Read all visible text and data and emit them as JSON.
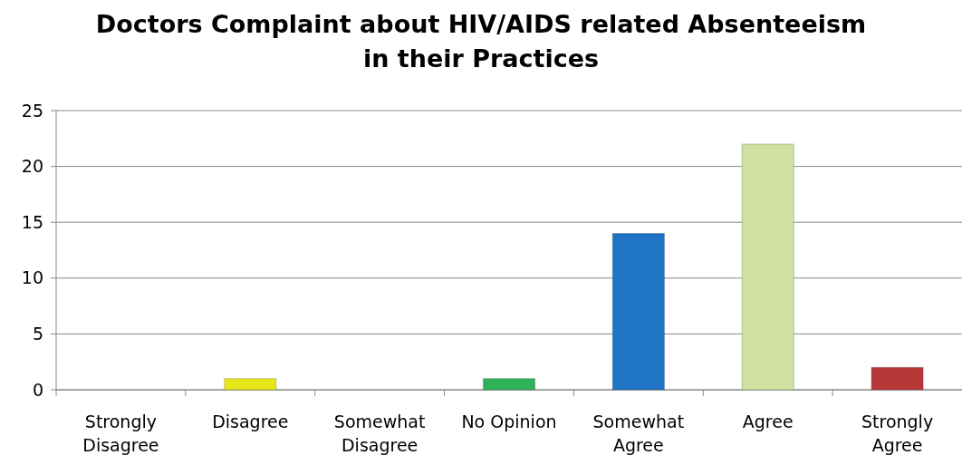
{
  "chart_data": {
    "type": "bar",
    "title": "Doctors Complaint about HIV/AIDS related Absenteeism in their Practices",
    "categories": [
      "Strongly Disagree",
      "Disagree",
      "Somewhat Disagree",
      "No Opinion",
      "Somewhat Agree",
      "Agree",
      "Strongly Agree"
    ],
    "values": [
      0,
      1,
      0,
      1,
      14,
      22,
      2
    ],
    "colors": [
      "#4f81bd",
      "#e6e61a",
      "#4f81bd",
      "#2fb35a",
      "#1f74c4",
      "#cfe0a0",
      "#b83838"
    ],
    "ylim": [
      0,
      25
    ],
    "yticks": [
      0,
      5,
      10,
      15,
      20,
      25
    ],
    "grid": "y"
  }
}
